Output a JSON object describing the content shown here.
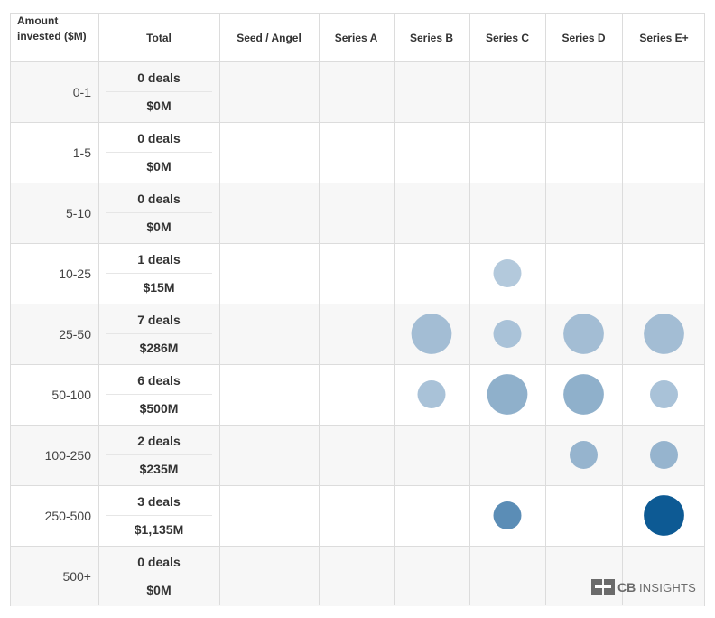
{
  "header": {
    "corner_label_line1": "Amount",
    "corner_label_line2": "invested ($M)",
    "total_label": "Total",
    "stages": [
      "Seed / Angel",
      "Series A",
      "Series B",
      "Series C",
      "Series D",
      "Series E+"
    ]
  },
  "chart_data": {
    "type": "bubble-matrix",
    "x_categories": [
      "Seed / Angel",
      "Series A",
      "Series B",
      "Series C",
      "Series D",
      "Series E+"
    ],
    "y_categories": [
      "0-1",
      "1-5",
      "5-10",
      "10-25",
      "25-50",
      "50-100",
      "100-250",
      "250-500",
      "500+"
    ],
    "row_totals": [
      {
        "deals": "0 deals",
        "amount": "$0M"
      },
      {
        "deals": "0 deals",
        "amount": "$0M"
      },
      {
        "deals": "0 deals",
        "amount": "$0M"
      },
      {
        "deals": "1 deals",
        "amount": "$15M"
      },
      {
        "deals": "7 deals",
        "amount": "$286M"
      },
      {
        "deals": "6 deals",
        "amount": "$500M"
      },
      {
        "deals": "2 deals",
        "amount": "$235M"
      },
      {
        "deals": "3 deals",
        "amount": "$1,135M"
      },
      {
        "deals": "0 deals",
        "amount": "$0M"
      }
    ],
    "bubbles": [
      {
        "row": "10-25",
        "col": "Series C",
        "size": 0.45,
        "color": "#b3c9dc"
      },
      {
        "row": "25-50",
        "col": "Series B",
        "size": 0.65,
        "color": "#a3bdd4"
      },
      {
        "row": "25-50",
        "col": "Series C",
        "size": 0.45,
        "color": "#a9c2d8"
      },
      {
        "row": "25-50",
        "col": "Series D",
        "size": 0.65,
        "color": "#a3bdd4"
      },
      {
        "row": "25-50",
        "col": "Series E+",
        "size": 0.65,
        "color": "#a3bdd4"
      },
      {
        "row": "50-100",
        "col": "Series B",
        "size": 0.45,
        "color": "#a9c2d8"
      },
      {
        "row": "50-100",
        "col": "Series C",
        "size": 0.65,
        "color": "#8fb0cb"
      },
      {
        "row": "50-100",
        "col": "Series D",
        "size": 0.65,
        "color": "#8fb0cb"
      },
      {
        "row": "50-100",
        "col": "Series E+",
        "size": 0.45,
        "color": "#a9c2d8"
      },
      {
        "row": "100-250",
        "col": "Series D",
        "size": 0.45,
        "color": "#96b4ce"
      },
      {
        "row": "100-250",
        "col": "Series E+",
        "size": 0.45,
        "color": "#96b4ce"
      },
      {
        "row": "250-500",
        "col": "Series C",
        "size": 0.45,
        "color": "#5b8db6"
      },
      {
        "row": "250-500",
        "col": "Series E+",
        "size": 0.65,
        "color": "#0d5a94"
      }
    ]
  },
  "logo": {
    "text_bold": "CB",
    "text_rest": "INSIGHTS"
  }
}
